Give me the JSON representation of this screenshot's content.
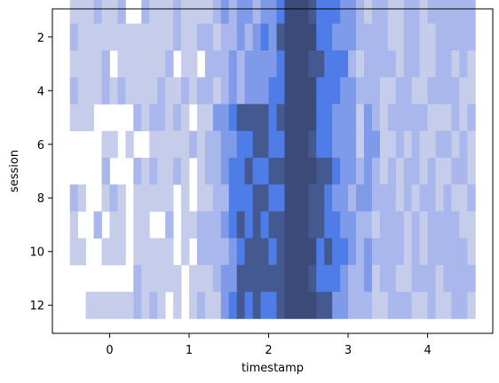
{
  "chart_data": {
    "type": "heatmap",
    "title": "",
    "xlabel": "timestamp",
    "ylabel": "session",
    "xlim": [
      -0.72,
      4.82
    ],
    "ylim": [
      13.05,
      0.95
    ],
    "x_ticks": [
      0,
      1,
      2,
      3,
      4
    ],
    "x_tick_labels": [
      "0",
      "1",
      "2",
      "3",
      "4"
    ],
    "y_ticks": [
      2,
      4,
      6,
      8,
      10,
      12
    ],
    "y_tick_labels": [
      "2",
      "4",
      "6",
      "8",
      "10",
      "12"
    ],
    "grid": false,
    "legend": "none",
    "x_bin_start": -0.5,
    "x_bin_width": 0.1,
    "rows": [
      1,
      2,
      3,
      4,
      5,
      6,
      7,
      8,
      9,
      10,
      11,
      12
    ],
    "density_levels": [
      [
        0,
        1,
        2,
        3,
        4,
        5,
        6,
        7,
        8,
        9
      ],
      [
        0,
        1,
        2,
        3,
        4,
        5,
        6,
        7,
        8,
        9
      ]
    ],
    "colors": {
      "lightest": "#c6cdeb",
      "light": "#a9b7ec",
      "mid": "#7f9ae8",
      "accent": "#4f7de8",
      "dark": "#44598f",
      "darkest": "#3b4a78"
    }
  }
}
